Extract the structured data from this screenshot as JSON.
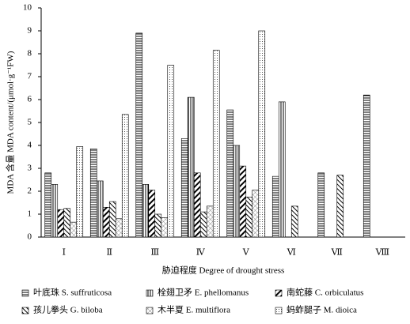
{
  "chart_data": {
    "type": "bar",
    "categories": [
      "Ⅰ",
      "Ⅱ",
      "Ⅲ",
      "Ⅳ",
      "Ⅴ",
      "Ⅵ",
      "Ⅶ",
      "Ⅷ"
    ],
    "series": [
      {
        "name": "叶底珠 S. suffruticosa",
        "color": "#000000",
        "pattern": "hlines",
        "values": [
          2.8,
          3.85,
          8.9,
          4.3,
          5.55,
          2.65,
          2.8,
          6.2
        ]
      },
      {
        "name": "栓翅卫矛 E. phellomanus",
        "color": "#000000",
        "pattern": "vlines",
        "values": [
          2.3,
          2.45,
          2.3,
          6.1,
          4.0,
          5.9,
          null,
          null
        ]
      },
      {
        "name": "南蛇藤 C. orbiculatus",
        "color": "#000000",
        "pattern": "thickdiag",
        "values": [
          1.2,
          1.3,
          2.05,
          2.8,
          3.1,
          null,
          null,
          null
        ]
      },
      {
        "name": "孩儿拳头 G. biloba",
        "color": "#000000",
        "pattern": "diag",
        "values": [
          1.25,
          1.55,
          1.0,
          1.1,
          1.75,
          1.35,
          2.7,
          null
        ]
      },
      {
        "name": "木半夏 E. multiflora",
        "color": "#000000",
        "pattern": "cross",
        "values": [
          0.65,
          0.8,
          0.85,
          1.35,
          2.05,
          null,
          null,
          null
        ]
      },
      {
        "name": "蚂蚱腿子 M. dioica",
        "color": "#000000",
        "pattern": "dots",
        "values": [
          3.95,
          5.35,
          7.5,
          8.15,
          9.0,
          null,
          null,
          null
        ]
      }
    ],
    "ylim": [
      0,
      10
    ],
    "yticks": [
      0,
      1,
      2,
      3,
      4,
      5,
      6,
      7,
      8,
      9,
      10
    ],
    "y_label": "MDA 含量 MDA content/(μmol·g⁻¹FW)",
    "x_label": "胁迫程度 Degree of drought stress",
    "grid": false
  }
}
